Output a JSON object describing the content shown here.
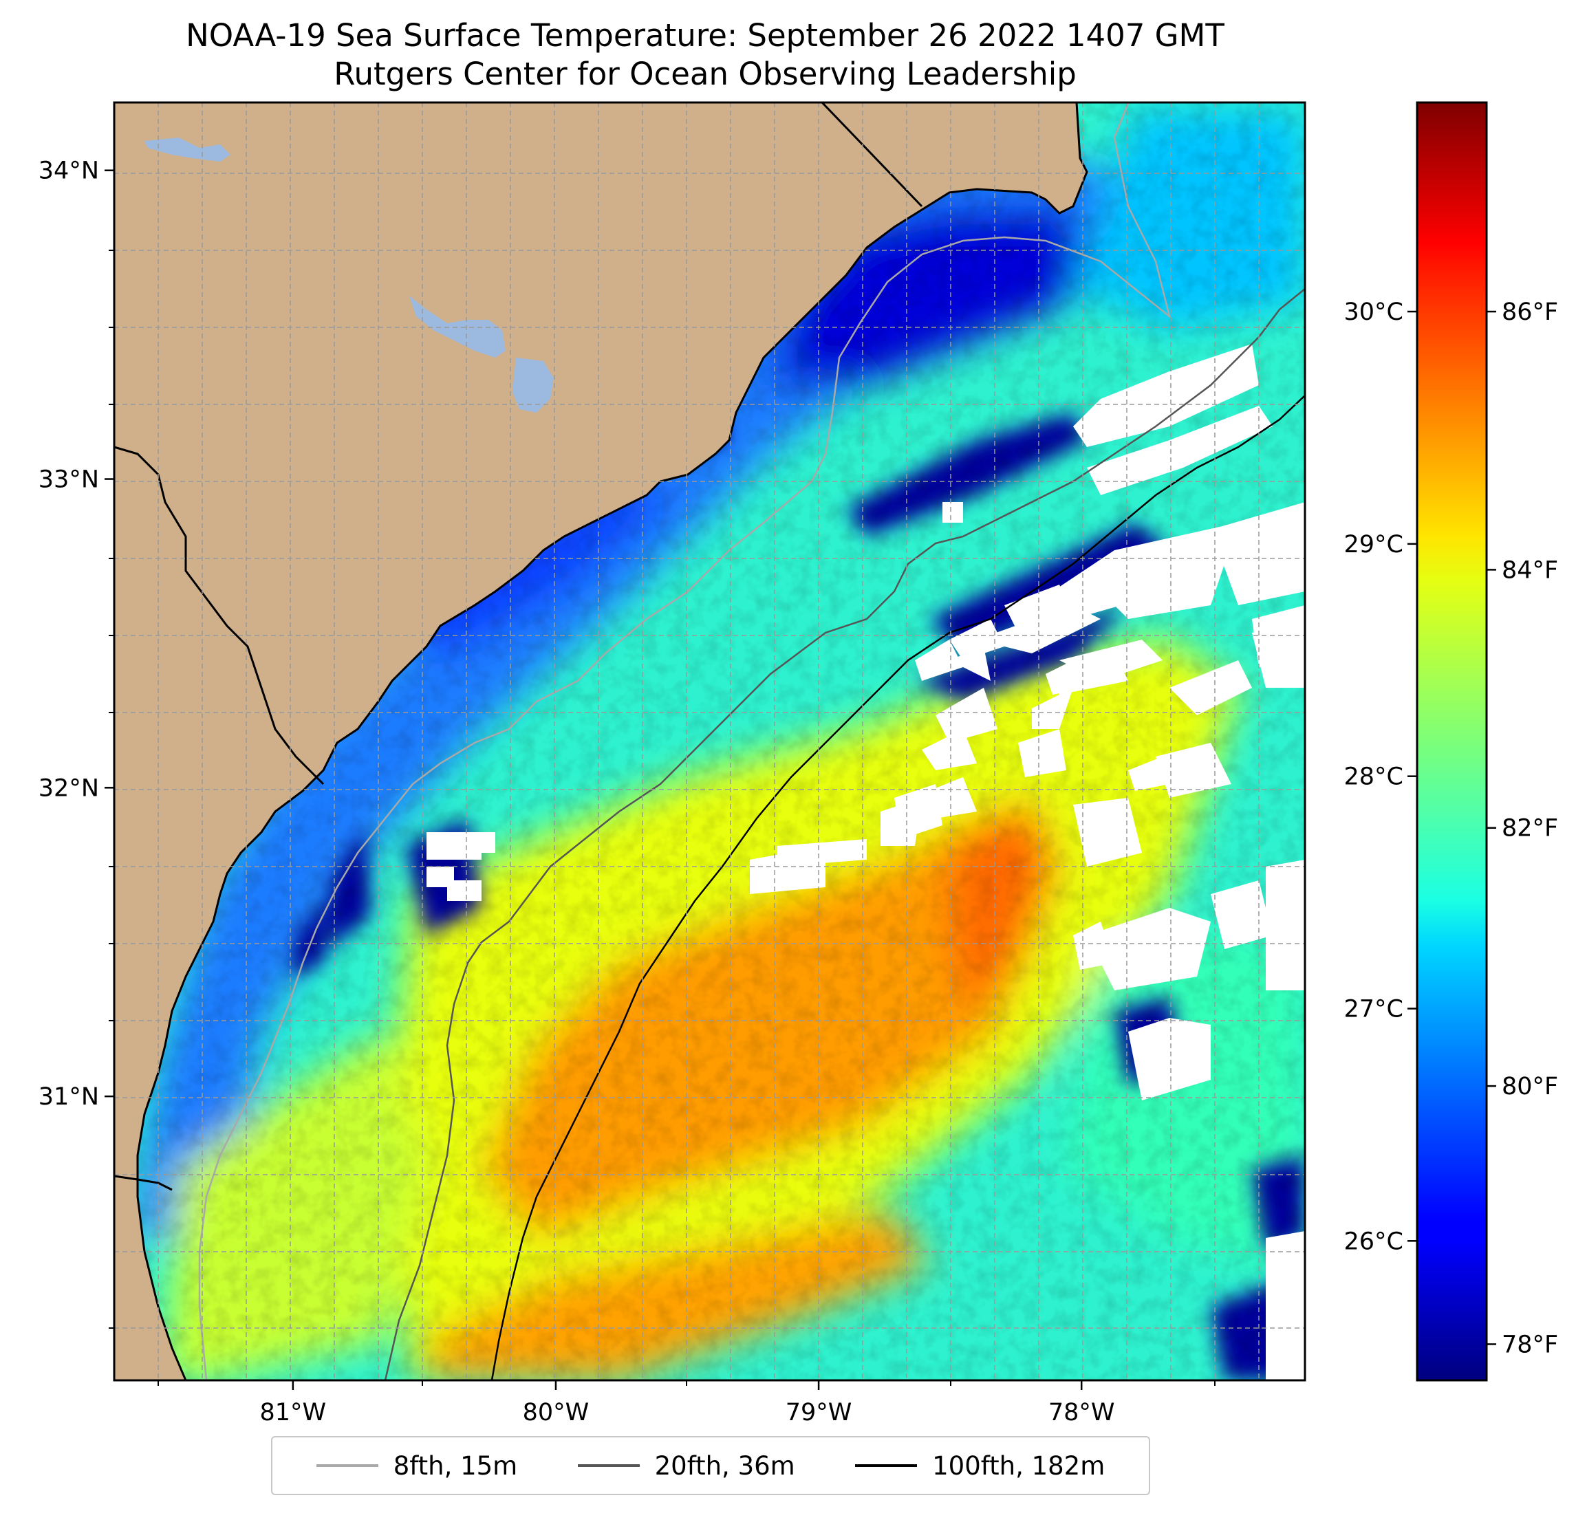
{
  "map": {
    "title": "NOAA-19 Sea Surface Temperature: September 26 2022 1407 GMT",
    "subtitle": "Rutgers Center for Ocean Observing Leadership",
    "extent": {
      "lon_min": -81.68,
      "lon_max": -77.15,
      "lat_min": 30.08,
      "lat_max": 34.22
    },
    "longitude_ticks": [
      {
        "value": -81,
        "label": "81°W"
      },
      {
        "value": -80,
        "label": "80°W"
      },
      {
        "value": -79,
        "label": "79°W"
      },
      {
        "value": -78,
        "label": "78°W"
      }
    ],
    "latitude_ticks": [
      {
        "value": 31,
        "label": "31°N"
      },
      {
        "value": 32,
        "label": "32°N"
      },
      {
        "value": 33,
        "label": "33°N"
      },
      {
        "value": 34,
        "label": "34°N"
      }
    ],
    "gridlines": true,
    "colors": {
      "land": "#cfb08a",
      "lakes": "#9cb9e0",
      "no_data": "#ffffff",
      "coastline": "#000000",
      "gridline": "#999999"
    }
  },
  "colorbar": {
    "colormap": "jet",
    "range_celsius": [
      25.4,
      30.9
    ],
    "celsius_ticks": [
      {
        "value": 26,
        "label": "26°C"
      },
      {
        "value": 27,
        "label": "27°C"
      },
      {
        "value": 28,
        "label": "28°C"
      },
      {
        "value": 29,
        "label": "29°C"
      },
      {
        "value": 30,
        "label": "30°C"
      }
    ],
    "fahrenheit_ticks": [
      {
        "value": 78,
        "label": "78°F"
      },
      {
        "value": 80,
        "label": "80°F"
      },
      {
        "value": 82,
        "label": "82°F"
      },
      {
        "value": 84,
        "label": "84°F"
      },
      {
        "value": 86,
        "label": "86°F"
      }
    ]
  },
  "legend": {
    "placement": "bottom-center",
    "items": [
      {
        "label": "8fth, 15m",
        "color": "#a9a9a9"
      },
      {
        "label": "20fth, 36m",
        "color": "#555555"
      },
      {
        "label": "100fth, 182m",
        "color": "#000000"
      }
    ]
  }
}
